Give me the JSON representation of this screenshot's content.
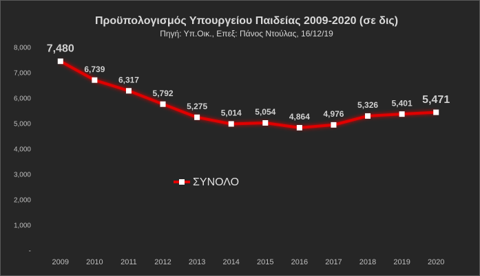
{
  "chart_data": {
    "type": "line",
    "title": "Προϋπολογισμός Υπουργείου Παιδείας 2009-2020 (σε δις)",
    "subtitle": "Πηγή: Υπ.Οικ., Επεξ: Πάνος Ντούλας, 16/12/19",
    "categories": [
      "2009",
      "2010",
      "2011",
      "2012",
      "2013",
      "2014",
      "2015",
      "2016",
      "2017",
      "2018",
      "2019",
      "2020"
    ],
    "series": [
      {
        "name": "ΣΥΝΟΛΟ",
        "color": "#e00000",
        "values": [
          7480,
          6739,
          6317,
          5792,
          5275,
          5014,
          5054,
          4864,
          4976,
          5326,
          5401,
          5471
        ],
        "value_labels": [
          "7,480",
          "6,739",
          "6,317",
          "5,792",
          "5,275",
          "5,014",
          "5,054",
          "4,864",
          "4,976",
          "5,326",
          "5,401",
          "5,471"
        ]
      }
    ],
    "ylim": [
      0,
      8000
    ],
    "yticks": [
      {
        "value": 0,
        "label": "-"
      },
      {
        "value": 1000,
        "label": "1,000"
      },
      {
        "value": 2000,
        "label": "2,000"
      },
      {
        "value": 3000,
        "label": "3,000"
      },
      {
        "value": 4000,
        "label": "4,000"
      },
      {
        "value": 5000,
        "label": "5,000"
      },
      {
        "value": 6000,
        "label": "6,000"
      },
      {
        "value": 7000,
        "label": "7,000"
      },
      {
        "value": 8000,
        "label": "8,000"
      }
    ],
    "grid": false
  }
}
